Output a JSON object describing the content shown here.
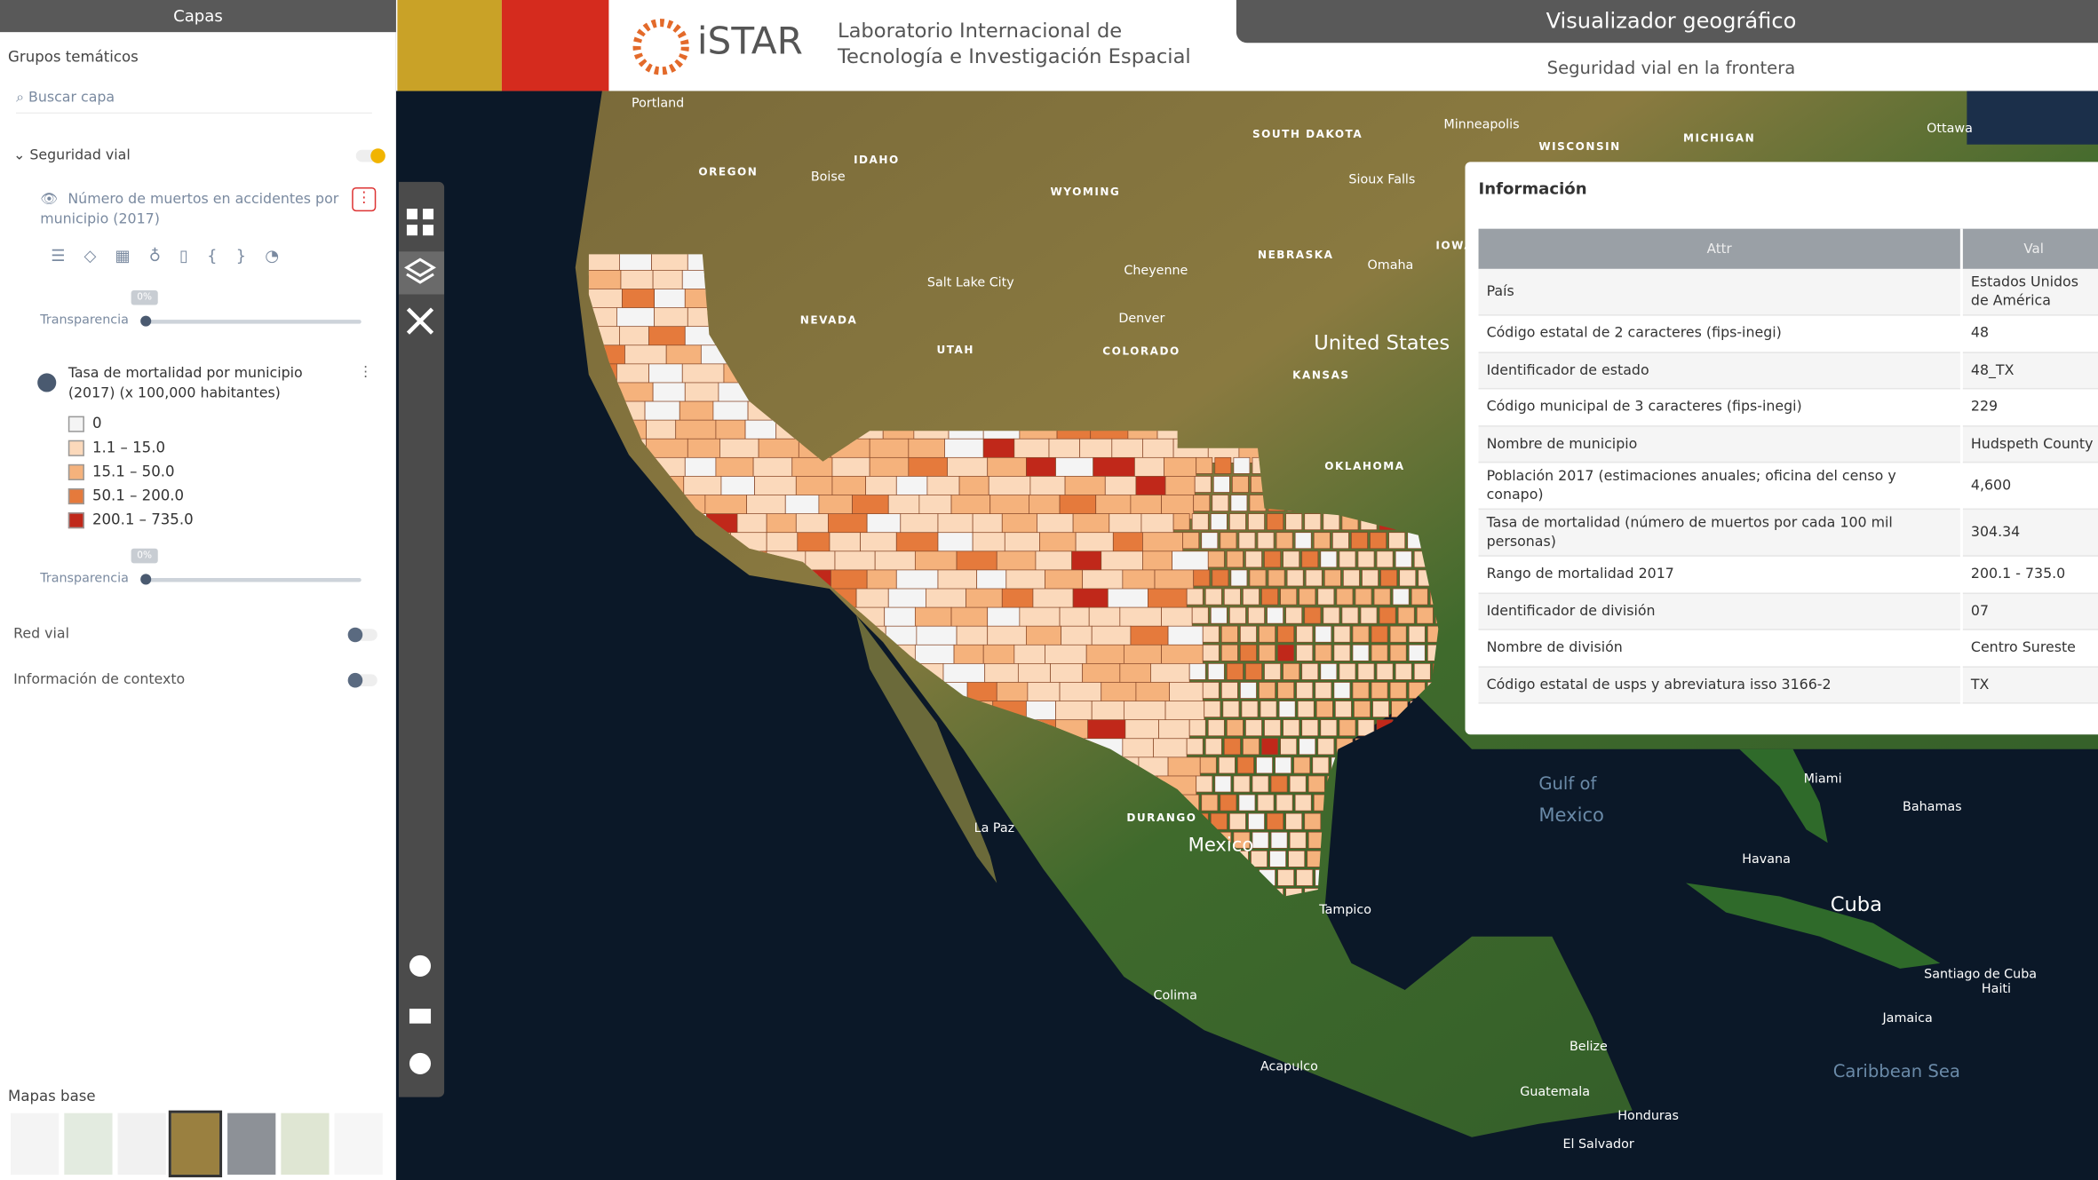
{
  "header": {
    "logo": "iSTAR",
    "lab_line1": "Laboratorio Internacional de",
    "lab_line2": "Tecnología e Investigación Espacial",
    "title": "Visualizador geográfico",
    "subtitle": "Seguridad vial en la frontera"
  },
  "sidebar": {
    "title": "Capas",
    "section": "Grupos temáticos",
    "search_placeholder": "Buscar capa",
    "group": "Seguridad vial",
    "layer1": {
      "name": "Número de muertos en accidentes por municipio (2017)",
      "opacity": "0%",
      "transparency": "Transparencia"
    },
    "layer2": {
      "name": "Tasa de mortalidad por municipio (2017) (x 100,000 habitantes)",
      "opacity": "0%",
      "transparency": "Transparencia",
      "legend": [
        {
          "label": "0",
          "color": "#f4f4f4"
        },
        {
          "label": "1.1 – 15.0",
          "color": "#fbd9bb"
        },
        {
          "label": "15.1 – 50.0",
          "color": "#f5b27c"
        },
        {
          "label": "50.1 – 200.0",
          "color": "#e57a3c"
        },
        {
          "label": "200.1 – 735.0",
          "color": "#c0281a"
        }
      ]
    },
    "other_groups": [
      "Red vial",
      "Información de contexto"
    ],
    "basemaps_title": "Mapas base"
  },
  "info": {
    "title": "Información",
    "columns": [
      "Attr",
      "Val"
    ],
    "rows": [
      [
        "País",
        "Estados Unidos de América"
      ],
      [
        "Código estatal de 2 caracteres (fips-inegi)",
        "48"
      ],
      [
        "Identificador de estado",
        "48_TX"
      ],
      [
        "Código municipal de 3 caracteres (fips-inegi)",
        "229"
      ],
      [
        "Nombre de municipio",
        "Hudspeth County"
      ],
      [
        "Población 2017 (estimaciones anuales; oficina del censo y conapo)",
        "4,600"
      ],
      [
        "Tasa de mortalidad (número de muertos por cada 100 mil personas)",
        "304.34"
      ],
      [
        "Rango de mortalidad 2017",
        "200.1 - 735.0"
      ],
      [
        "Identificador de división",
        "07"
      ],
      [
        "Nombre de división",
        "Centro Sureste"
      ],
      [
        "Código estatal de usps y abreviatura isso 3166-2",
        "TX"
      ]
    ]
  },
  "map_labels": [
    "Portland",
    "SOUTH DAKOTA",
    "OREGON",
    "IDAHO",
    "Boise",
    "WYOMING",
    "Sioux Falls",
    "Minneapolis",
    "WISCONSIN",
    "MICHIGAN",
    "Ottawa",
    "NEBRASKA",
    "IOWA",
    "Omaha",
    "Cheyenne",
    "Salt Lake City",
    "NEVADA",
    "UTAH",
    "Denver",
    "COLORADO",
    "United States",
    "KANSAS",
    "OKLAHOMA",
    "Gulf of",
    "Mexico",
    "Mexico",
    "Cuba",
    "Bahamas",
    "Havana",
    "Miami",
    "Jamaica",
    "Santiago de Cuba",
    "Haiti",
    "Belize",
    "Guatemala",
    "Honduras",
    "El Salvador",
    "Caribbean Sea",
    "Acapulco",
    "Tampico",
    "DURANGO",
    "La Paz",
    "Colima"
  ]
}
